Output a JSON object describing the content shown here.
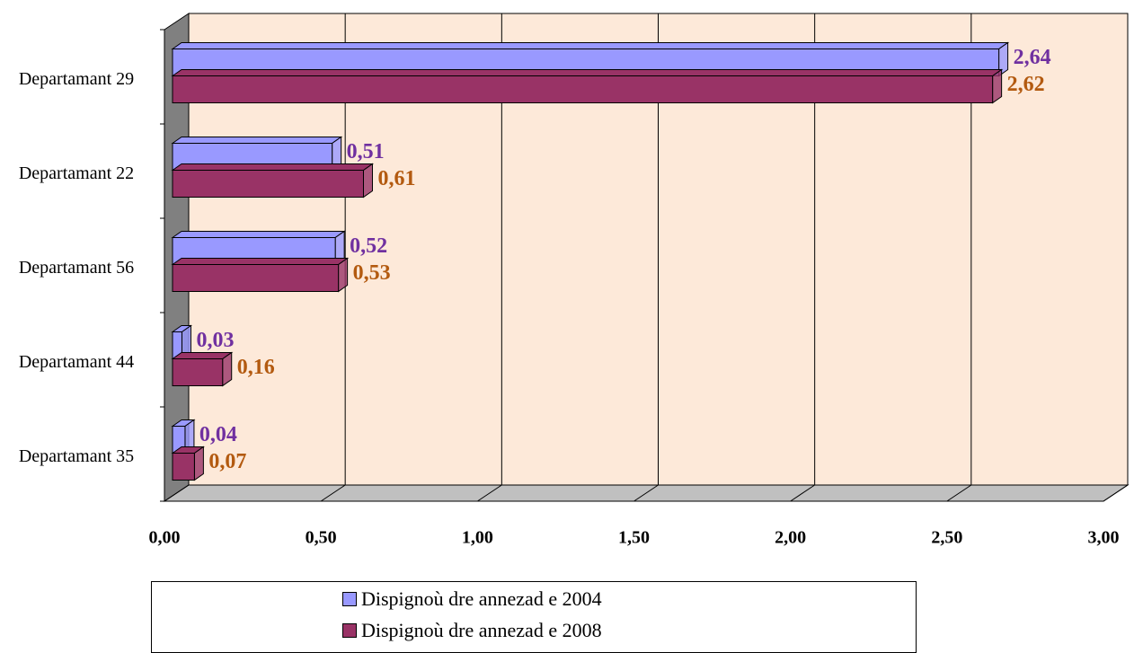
{
  "chart_data": {
    "type": "bar3d_horizontal",
    "categories": [
      "Departamant 29",
      "Departamant 22",
      "Departamant 56",
      "Departamant 44",
      "Departamant 35"
    ],
    "series": [
      {
        "name": "Dispignoù dre annezad e 2004",
        "color": "#9999ff",
        "label_color": "#7030a0",
        "values": [
          2.64,
          0.51,
          0.52,
          0.03,
          0.04
        ],
        "value_labels": [
          "2,64",
          "0,51",
          "0,52",
          "0,03",
          "0,04"
        ]
      },
      {
        "name": "Dispignoù dre annezad e 2008",
        "color": "#993366",
        "label_color": "#b35a10",
        "values": [
          2.62,
          0.61,
          0.53,
          0.16,
          0.07
        ],
        "value_labels": [
          "2,62",
          "0,61",
          "0,53",
          "0,16",
          "0,07"
        ]
      }
    ],
    "xlim": [
      0,
      3
    ],
    "xticks": [
      {
        "value": 0,
        "label": "0,00"
      },
      {
        "value": 0.5,
        "label": "0,50"
      },
      {
        "value": 1,
        "label": "1,00"
      },
      {
        "value": 1.5,
        "label": "1,50"
      },
      {
        "value": 2,
        "label": "2,00"
      },
      {
        "value": 2.5,
        "label": "2,50"
      },
      {
        "value": 3,
        "label": "3,00"
      }
    ],
    "grid": true,
    "legend": "bottom"
  }
}
